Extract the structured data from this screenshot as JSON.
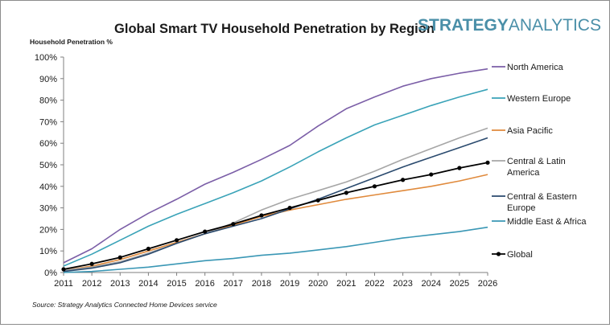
{
  "brand": {
    "part1": "STRATEGY",
    "part2": "ANALYTICS",
    "color": "#4a8fa8"
  },
  "chart_data": {
    "type": "line",
    "title": "Global Smart TV Household Penetration by Region",
    "ylabel": "Household Penetration %",
    "xlabel": "",
    "source": "Source: Strategy Analytics Connected Home Devices service",
    "ylim": [
      0,
      100
    ],
    "yticks": [
      "0%",
      "10%",
      "20%",
      "30%",
      "40%",
      "50%",
      "60%",
      "70%",
      "80%",
      "90%",
      "100%"
    ],
    "grid": false,
    "legend_position": "right",
    "x": [
      2011,
      2012,
      2013,
      2014,
      2015,
      2016,
      2017,
      2018,
      2019,
      2020,
      2021,
      2022,
      2023,
      2024,
      2025,
      2026
    ],
    "series": [
      {
        "name": "North America",
        "color": "#7b5ea7",
        "marker": false,
        "values": [
          4.5,
          11,
          20,
          27.5,
          34,
          41,
          46.5,
          52.5,
          59,
          68,
          76,
          81.5,
          86.5,
          90,
          92.5,
          94.5
        ]
      },
      {
        "name": "Western Europe",
        "color": "#3aa3b8",
        "marker": false,
        "values": [
          3,
          8.5,
          15,
          21.5,
          27,
          32,
          37,
          42.5,
          49,
          56,
          62.5,
          68.5,
          73,
          77.5,
          81.5,
          85
        ]
      },
      {
        "name": "Asia Pacific",
        "color": "#e08a3c",
        "marker": false,
        "values": [
          1,
          3,
          6,
          10,
          14,
          18,
          22,
          26,
          29,
          31.5,
          34,
          36,
          38,
          40,
          42.5,
          45.5
        ]
      },
      {
        "name": "Central & Latin America",
        "color": "#a6a6a6",
        "marker": false,
        "values": [
          1,
          2.5,
          5,
          9,
          13.5,
          18,
          23,
          29,
          34,
          38,
          42,
          47,
          52.5,
          57.5,
          62.5,
          67
        ]
      },
      {
        "name": "Central & Eastern Europe",
        "color": "#2a4a6e",
        "marker": false,
        "values": [
          0.5,
          2,
          4.5,
          8.5,
          13.5,
          18,
          21.5,
          25,
          29.5,
          34,
          39,
          44,
          49,
          53.5,
          58,
          62.5
        ]
      },
      {
        "name": "Middle East & Africa",
        "color": "#3a97b5",
        "marker": false,
        "values": [
          0,
          0.5,
          1.5,
          2.5,
          4,
          5.5,
          6.5,
          8,
          9,
          10.5,
          12,
          14,
          16,
          17.5,
          19,
          21
        ]
      },
      {
        "name": "Global",
        "color": "#000000",
        "marker": true,
        "values": [
          1.5,
          4,
          7,
          11,
          15,
          19,
          22.5,
          26.5,
          30,
          33.5,
          37,
          40,
          43,
          45.5,
          48.5,
          51
        ]
      }
    ]
  }
}
